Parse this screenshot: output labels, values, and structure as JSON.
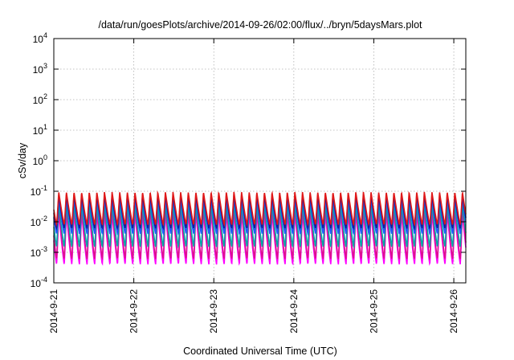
{
  "chart_data": {
    "type": "line",
    "title": "/data/run/goesPlots/archive/2014-09-26/02:00/flux/../bryn/5daysMars.plot",
    "xlabel": "Coordinated Universal Time (UTC)",
    "ylabel": "cSv/day",
    "yscale": "log",
    "ylim": [
      0.0001,
      10000
    ],
    "xlim": [
      0,
      5.15
    ],
    "grid": true,
    "x_tick_labels": [
      "2014-9-21",
      "2014-9-22",
      "2014-9-23",
      "2014-9-24",
      "2014-9-25",
      "2014-9-26"
    ],
    "x_tick_values": [
      0,
      1,
      2,
      3,
      4,
      5
    ],
    "y_tick_exponents": [
      -4,
      -3,
      -2,
      -1,
      0,
      1,
      2,
      3,
      4
    ],
    "y_tick_base": "10",
    "oscillation": {
      "period_days": 0.0952,
      "phase_days": 0.035
    },
    "series": [
      {
        "color": "#ff00ff",
        "min": 0.0004,
        "max": 0.02
      },
      {
        "color": "#dd1090",
        "min": 0.0006,
        "max": 0.028
      },
      {
        "color": "#00a8a8",
        "min": 0.0015,
        "max": 0.04
      },
      {
        "color": "#2255ff",
        "min": 0.004,
        "max": 0.06
      },
      {
        "color": "#1a1a99",
        "min": 0.006,
        "max": 0.075
      },
      {
        "color": "#e01818",
        "min": 0.008,
        "max": 0.095
      }
    ]
  }
}
